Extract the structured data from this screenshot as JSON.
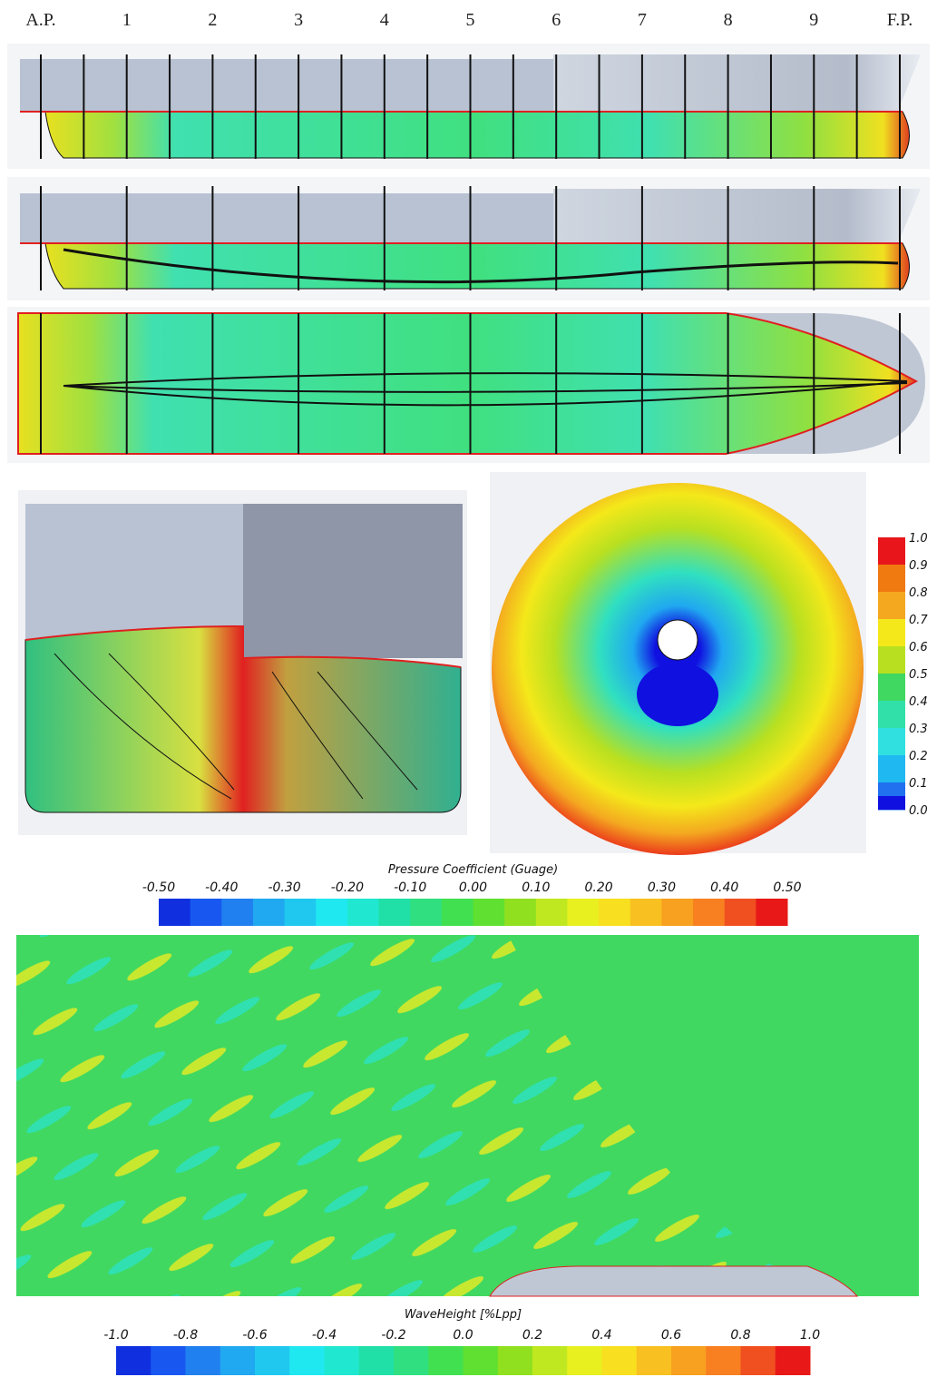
{
  "stations": [
    "A.P.",
    "1",
    "2",
    "3",
    "4",
    "5",
    "6",
    "7",
    "8",
    "9",
    "F.P."
  ],
  "wake_colorbar": {
    "ticks": [
      "1.0",
      "0.9",
      "0.8",
      "0.7",
      "0.6",
      "0.5",
      "0.4",
      "0.3",
      "0.2",
      "0.1",
      "0.0"
    ],
    "colors": [
      "#e8161a",
      "#f07a10",
      "#f4a820",
      "#f4e81a",
      "#b8e020",
      "#40d860",
      "#30e0a8",
      "#30e0e0",
      "#20b8f0",
      "#2070f0",
      "#1010e0"
    ]
  },
  "pressure_colorbar": {
    "title": "Pressure Coefficient (Guage)",
    "ticks": [
      "-0.50",
      "-0.40",
      "-0.30",
      "-0.20",
      "-0.10",
      "0.00",
      "0.10",
      "0.20",
      "0.30",
      "0.40",
      "0.50"
    ],
    "colors": [
      "#1030e0",
      "#1858f0",
      "#2080f0",
      "#20a8f0",
      "#20c8f0",
      "#20e8f0",
      "#20e8d0",
      "#20e0a8",
      "#30e080",
      "#40e050",
      "#60e030",
      "#90e020",
      "#c0e820",
      "#e8f020",
      "#f8e020",
      "#f8c020",
      "#f8a020",
      "#f88020",
      "#f05020",
      "#e81818"
    ]
  },
  "wave_colorbar": {
    "title": "WaveHeight [%Lpp]",
    "ticks": [
      "-1.0",
      "-0.8",
      "-0.6",
      "-0.4",
      "-0.2",
      "0.0",
      "0.2",
      "0.4",
      "0.6",
      "0.8",
      "1.0"
    ],
    "colors": [
      "#1030e0",
      "#1858f0",
      "#2080f0",
      "#20a8f0",
      "#20c8f0",
      "#20e8f0",
      "#20e8d0",
      "#20e0a8",
      "#30e080",
      "#40e050",
      "#60e030",
      "#90e020",
      "#c0e820",
      "#e8f020",
      "#f8e020",
      "#f8c020",
      "#f8a020",
      "#f88020",
      "#f05020",
      "#e81818"
    ]
  }
}
